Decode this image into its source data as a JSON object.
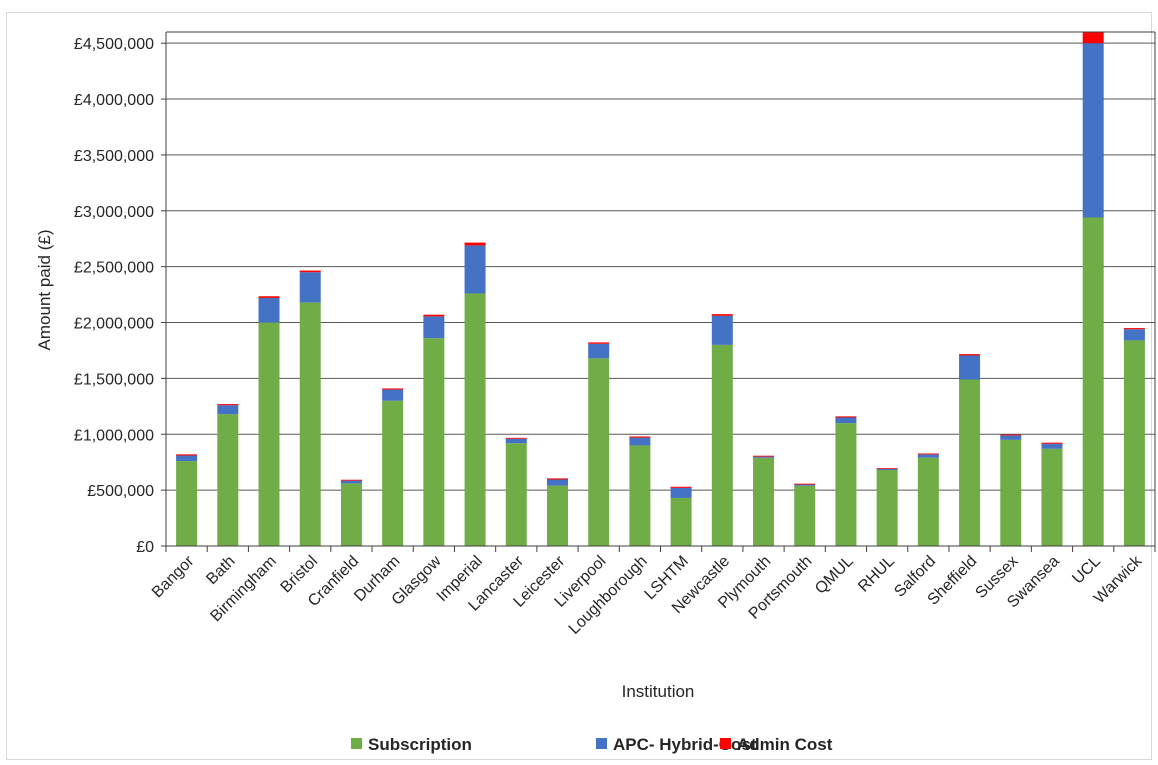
{
  "chart_data": {
    "type": "bar",
    "stacked": true,
    "ylabel": "Amount paid (£)",
    "xlabel": "Institution",
    "ylim": [
      0,
      4600000
    ],
    "yticks": [
      0,
      500000,
      1000000,
      1500000,
      2000000,
      2500000,
      3000000,
      3500000,
      4000000,
      4500000
    ],
    "ytick_labels": [
      "£0",
      "£500,000",
      "£1,000,000",
      "£1,500,000",
      "£2,000,000",
      "£2,500,000",
      "£3,000,000",
      "£3,500,000",
      "£4,000,000",
      "£4,500,000"
    ],
    "grid": true,
    "legend_position": "bottom",
    "categories": [
      "Bangor",
      "Bath",
      "Birmingham",
      "Bristol",
      "Cranfield",
      "Durham",
      "Glasgow",
      "Imperial",
      "Lancaster",
      "Leicester",
      "Liverpool",
      "Loughborough",
      "LSHTM",
      "Newcastle",
      "Plymouth",
      "Portsmouth",
      "QMUL",
      "RHUL",
      "Salford",
      "Sheffield",
      "Sussex",
      "Swansea",
      "UCL",
      "Warwick"
    ],
    "series": [
      {
        "name": "Subscription",
        "color": "#70ad47",
        "values": [
          760000,
          1180000,
          2000000,
          2180000,
          560000,
          1300000,
          1860000,
          2260000,
          920000,
          540000,
          1680000,
          900000,
          430000,
          1800000,
          790000,
          540000,
          1100000,
          680000,
          790000,
          1490000,
          950000,
          870000,
          2940000,
          1840000
        ]
      },
      {
        "name": "APC- Hybrid-Cost",
        "color": "#4472c4",
        "values": [
          50000,
          80000,
          220000,
          270000,
          25000,
          100000,
          195000,
          430000,
          40000,
          55000,
          130000,
          70000,
          90000,
          260000,
          10000,
          10000,
          50000,
          10000,
          30000,
          215000,
          40000,
          45000,
          1560000,
          100000
        ]
      },
      {
        "name": "Admin Cost",
        "color": "#ff0000",
        "values": [
          10000,
          10000,
          15000,
          15000,
          8000,
          10000,
          15000,
          25000,
          8000,
          10000,
          12000,
          10000,
          10000,
          15000,
          8000,
          8000,
          10000,
          7000,
          8000,
          12000,
          8000,
          10000,
          100000,
          10000
        ]
      }
    ]
  }
}
